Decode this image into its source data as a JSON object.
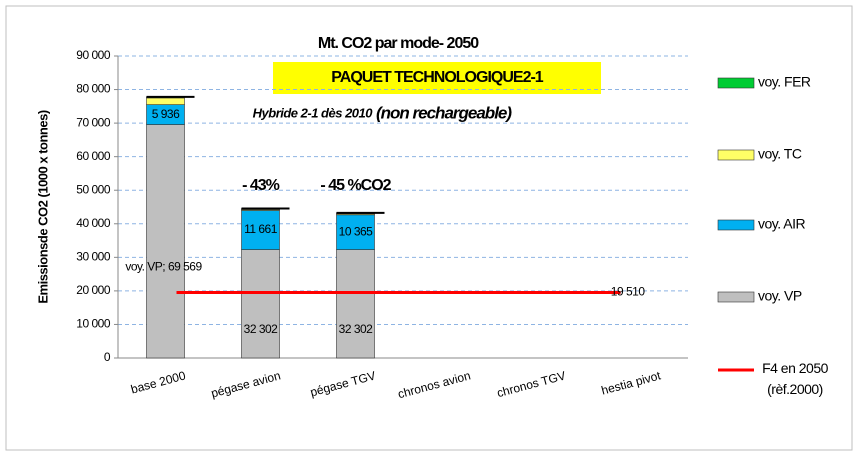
{
  "chart_data": {
    "type": "stacked_bar",
    "title": "Mt. CO2 par mode- 2050",
    "subtitle": "PAQUET TECHNOLOGIQUE2-1",
    "note": "Hybride 2-1 dès 2010",
    "note2": "(non rechargeable)",
    "y_label": "Emissionsde CO2 (1000 x tonnes)",
    "categories": [
      "base 2000",
      "pégase avion",
      "pégase TGV",
      "chronos avion",
      "chronos TGV",
      "hestia pivot"
    ],
    "series": [
      {
        "name": "voy. VP",
        "color": "#bfbfbf",
        "values": [
          69569,
          32302,
          32302,
          null,
          null,
          null
        ],
        "value_labels": [
          "voy. VP; 69 569",
          "32 302",
          "32 302",
          null,
          null,
          null
        ]
      },
      {
        "name": "voy. AIR",
        "color": "#00b0f0",
        "values": [
          5936,
          11661,
          10365,
          null,
          null,
          null
        ],
        "value_labels": [
          "5 936",
          "11 661",
          "10 365",
          null,
          null,
          null
        ]
      },
      {
        "name": "voy. TC",
        "color": "#ffff66",
        "values": [
          2000,
          300,
          300,
          null,
          null,
          null
        ]
      },
      {
        "name": "voy. FER",
        "color": "#00cc33",
        "values": [
          300,
          300,
          300,
          null,
          null,
          null
        ]
      }
    ],
    "reference": {
      "name": "F4 en 2050 (rèf.2000)",
      "color": "#ff0000",
      "value": 19510,
      "value_label": "19 510"
    },
    "annotations": [
      "- 43%",
      "- 45 %CO2"
    ],
    "ylim": [
      0,
      90000
    ],
    "yticks": [
      {
        "value": 0,
        "label": "0"
      },
      {
        "value": 10000,
        "label": "10 000"
      },
      {
        "value": 20000,
        "label": "20 000"
      },
      {
        "value": 30000,
        "label": "30 000"
      },
      {
        "value": 40000,
        "label": "40 000"
      },
      {
        "value": 50000,
        "label": "50 000"
      },
      {
        "value": 60000,
        "label": "60 000"
      },
      {
        "value": 70000,
        "label": "70 000"
      },
      {
        "value": 80000,
        "label": "80 000"
      },
      {
        "value": 90000,
        "label": "90 000"
      }
    ],
    "grid": true
  }
}
